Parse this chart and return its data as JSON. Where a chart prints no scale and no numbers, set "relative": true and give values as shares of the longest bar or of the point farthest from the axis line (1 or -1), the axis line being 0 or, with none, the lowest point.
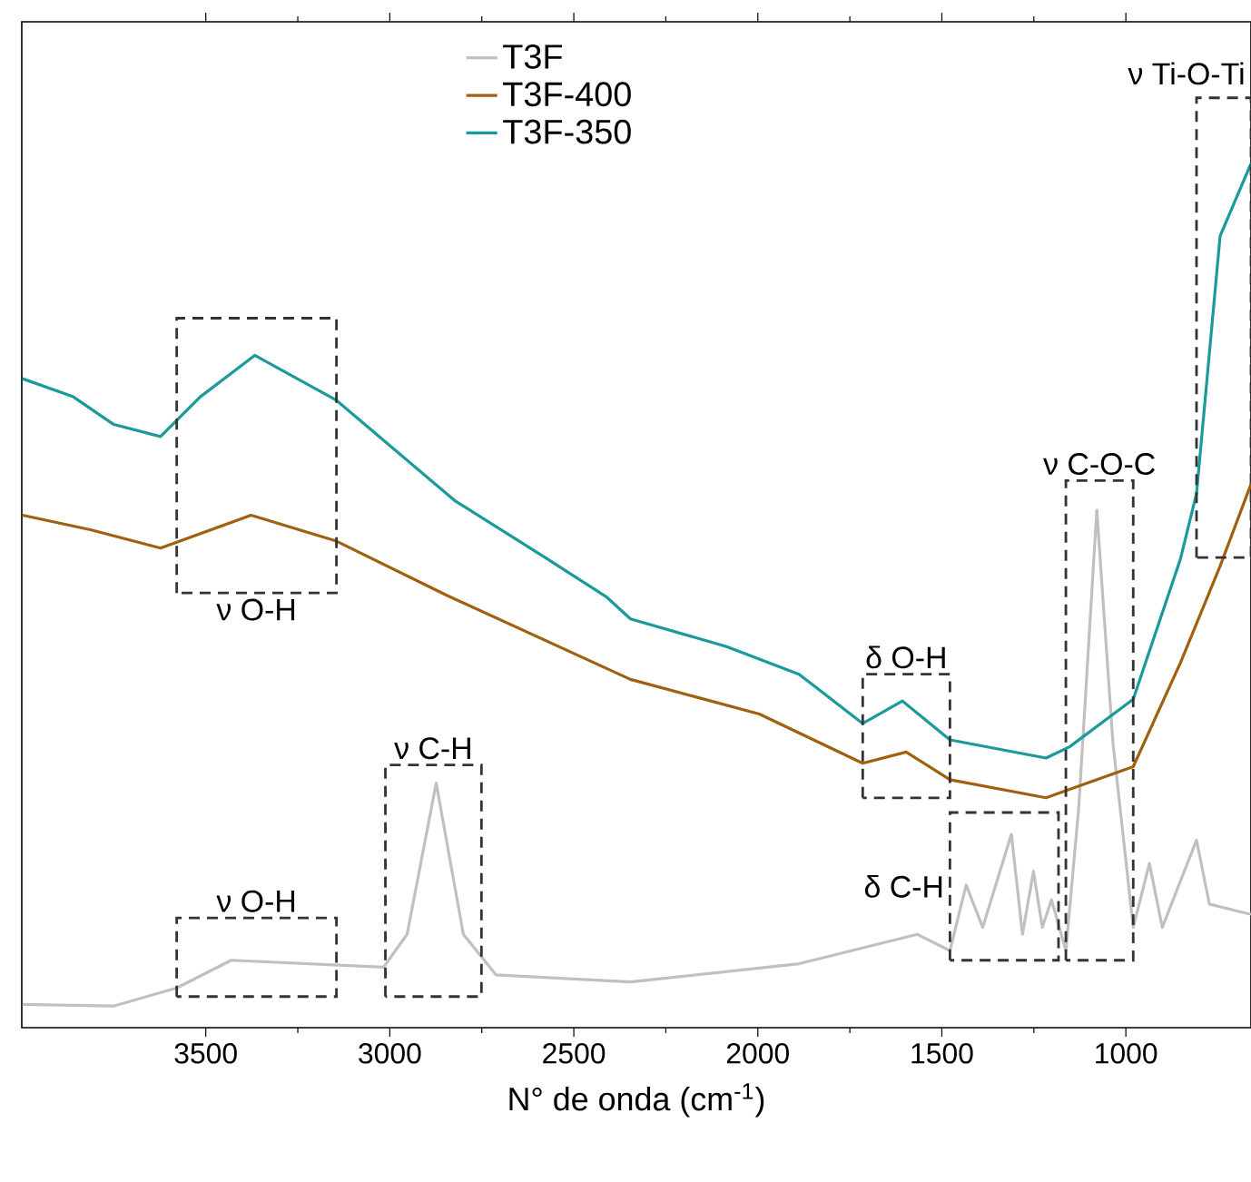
{
  "chart_data": {
    "type": "line",
    "relative": true,
    "xlabel": "N° de onda (cm$^{-1}$)",
    "xlim": [
      4000,
      660
    ],
    "xticks": [
      3500,
      3000,
      2500,
      2000,
      1500,
      1000
    ],
    "legend": "top",
    "marker": "none",
    "line_style": "solid",
    "grid": false,
    "series": [
      {
        "name": "T3F",
        "color": "#c0c0c0",
        "x": [
          3998,
          3751,
          3579,
          3431,
          3017,
          2953,
          2874,
          2800,
          2711,
          2346,
          1888,
          1567,
          1478,
          1434,
          1389,
          1311,
          1281,
          1251,
          1227,
          1202,
          1163,
          1128,
          1079,
          1035,
          980,
          936,
          901,
          808,
          773,
          660
        ],
        "values": [
          0.027,
          0.025,
          0.046,
          0.078,
          0.07,
          0.108,
          0.283,
          0.108,
          0.061,
          0.053,
          0.074,
          0.108,
          0.089,
          0.165,
          0.116,
          0.224,
          0.108,
          0.181,
          0.116,
          0.148,
          0.089,
          0.255,
          0.599,
          0.329,
          0.116,
          0.19,
          0.116,
          0.217,
          0.143,
          0.131
        ]
      },
      {
        "name": "T3F-400",
        "color": "#a0600f",
        "x": [
          3998,
          3811,
          3623,
          3377,
          3145,
          2844,
          2346,
          1996,
          1715,
          1597,
          1478,
          1217,
          980,
          852,
          744,
          660
        ],
        "values": [
          0.593,
          0.576,
          0.555,
          0.593,
          0.563,
          0.5,
          0.403,
          0.363,
          0.306,
          0.319,
          0.287,
          0.266,
          0.302,
          0.422,
          0.534,
          0.629
        ]
      },
      {
        "name": "T3F-350",
        "color": "#1a9a9a",
        "x": [
          3998,
          3860,
          3750,
          3623,
          3515,
          3367,
          3145,
          2824,
          2578,
          2410,
          2346,
          2085,
          1888,
          1715,
          1607,
          1478,
          1217,
          1153,
          980,
          852,
          808,
          744,
          660
        ],
        "values": [
          0.751,
          0.73,
          0.698,
          0.684,
          0.73,
          0.778,
          0.726,
          0.61,
          0.544,
          0.498,
          0.473,
          0.441,
          0.409,
          0.352,
          0.378,
          0.333,
          0.312,
          0.325,
          0.38,
          0.542,
          0.618,
          0.916,
          1
        ]
      }
    ],
    "annotations": [
      "ν O-H",
      "ν O-H",
      "ν C-H",
      "δ O-H",
      "δ C-H",
      "ν C-O-C",
      "ν Ti-O-Ti"
    ]
  }
}
